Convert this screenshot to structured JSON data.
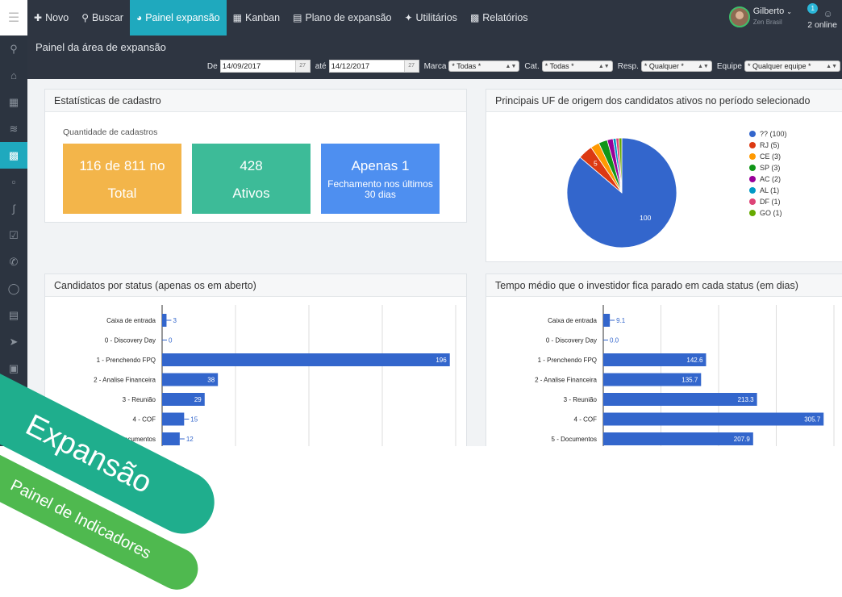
{
  "topnav": {
    "items": [
      {
        "label": "Novo",
        "icon": "plus-icon"
      },
      {
        "label": "Buscar",
        "icon": "search-icon"
      },
      {
        "label": "Painel expansão",
        "icon": "dashboard-icon",
        "active": true
      },
      {
        "label": "Kanban",
        "icon": "grid-icon"
      },
      {
        "label": "Plano de expansão",
        "icon": "calendar-icon"
      },
      {
        "label": "Utilitários",
        "icon": "wrench-icon"
      },
      {
        "label": "Relatórios",
        "icon": "bar-chart-icon"
      }
    ],
    "user_name": "Gilberto",
    "user_company": "Zen Brasil",
    "online_badge": "1",
    "online_label": "2 online"
  },
  "page_title": "Painel da área de expansão",
  "filters": {
    "de_label": "De",
    "date_from": "14/09/2017",
    "ate_label": "até",
    "date_to": "14/12/2017",
    "cal_day": "27",
    "marca_label": "Marca",
    "marca_value": "* Todas *",
    "cat_label": "Cat.",
    "cat_value": "* Todas *",
    "resp_label": "Resp.",
    "resp_value": "* Qualquer *",
    "equipe_label": "Equipe",
    "equipe_value": "* Qualquer equipe *"
  },
  "stats": {
    "title": "Estatísticas de cadastro",
    "subtitle": "Quantidade de cadastros",
    "cards": [
      {
        "line1": "116 de 811 no",
        "line2": "Total",
        "color": "#f3b54a"
      },
      {
        "line1": "428",
        "line2": "Ativos",
        "color": "#3dbb98"
      },
      {
        "line1": "Apenas 1",
        "line2": "Fechamento nos últimos 30 dias",
        "color": "#4e8ff0"
      }
    ]
  },
  "charts": {
    "pie_title": "Principais UF de origem dos candidatos ativos no período selecionado",
    "status_title": "Candidatos por status (apenas os em aberto)",
    "tempo_title": "Tempo médio que o investidor fica parado em cada status (em dias)"
  },
  "chart_data": [
    {
      "type": "pie",
      "title": "Principais UF de origem dos candidatos ativos no período selecionado",
      "slices": [
        {
          "label": "??",
          "value": 100,
          "legend": "?? (100)",
          "color": "#3366cc"
        },
        {
          "label": "RJ",
          "value": 5,
          "legend": "RJ (5)",
          "color": "#dc3912"
        },
        {
          "label": "CE",
          "value": 3,
          "legend": "CE (3)",
          "color": "#ff9900"
        },
        {
          "label": "SP",
          "value": 3,
          "legend": "SP (3)",
          "color": "#109618"
        },
        {
          "label": "AC",
          "value": 2,
          "legend": "AC (2)",
          "color": "#990099"
        },
        {
          "label": "AL",
          "value": 1,
          "legend": "AL (1)",
          "color": "#0099c6"
        },
        {
          "label": "DF",
          "value": 1,
          "legend": "DF (1)",
          "color": "#dd4477"
        },
        {
          "label": "GO",
          "value": 1,
          "legend": "GO (1)",
          "color": "#66aa00"
        }
      ],
      "slice_labels_shown": [
        "100",
        "5"
      ],
      "legend_position": "right"
    },
    {
      "type": "bar",
      "orientation": "horizontal",
      "title": "Candidatos por status (apenas os em aberto)",
      "categories": [
        "Caixa de entrada",
        "0 - Discovery Day",
        "1 - Prenchendo FPQ",
        "2 - Analise Financeira",
        "3 - Reunião",
        "4 - COF",
        "5 - Documentos"
      ],
      "values": [
        3,
        0,
        196,
        38,
        29,
        15,
        12
      ],
      "value_labels": [
        "3",
        "0",
        "196",
        "38",
        "29",
        "15",
        "12"
      ],
      "xlim": [
        0,
        200
      ],
      "color": "#3366cc",
      "grid": true
    },
    {
      "type": "bar",
      "orientation": "horizontal",
      "title": "Tempo médio que o investidor fica parado em cada status (em dias)",
      "categories": [
        "Caixa de entrada",
        "0 - Discovery Day",
        "1 - Prenchendo FPQ",
        "2 - Analise Financeira",
        "3 - Reunião",
        "4 - COF",
        "5 - Documentos"
      ],
      "values": [
        9.1,
        0.0,
        142.6,
        135.7,
        213.3,
        305.7,
        207.9
      ],
      "value_labels": [
        "9.1",
        "0.0",
        "142.6",
        "135.7",
        "213.3",
        "305.7",
        "207.9"
      ],
      "xlim": [
        0,
        320
      ],
      "color": "#3366cc",
      "grid": true
    }
  ],
  "ribbons": {
    "title": "Expansão",
    "subtitle": "Painel de Indicadores",
    "title_color": "#1fae8d",
    "subtitle_color": "#4fb94f"
  }
}
